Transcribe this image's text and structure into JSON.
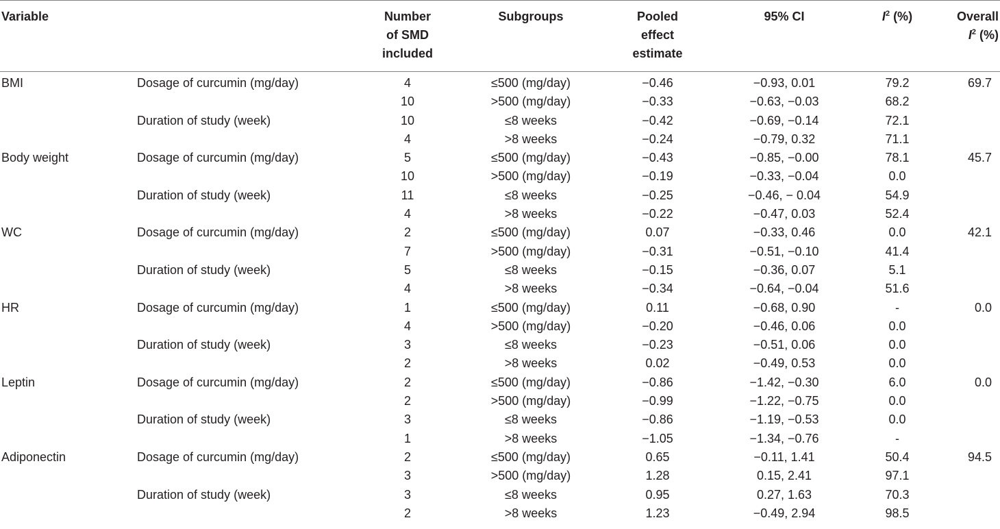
{
  "header": {
    "variable": "Variable",
    "number_line1": "Number",
    "number_line2": "of SMD",
    "number_line3": "included",
    "subgroups": "Subgroups",
    "pooled_line1": "Pooled",
    "pooled_line2": "effect",
    "pooled_line3": "estimate",
    "ci": "95% CI",
    "i2_letter": "I",
    "i2_sup": "2",
    "i2_rest": " (%)",
    "overall_line1": "Overall",
    "overall_letter": "I",
    "overall_sup": "2",
    "overall_rest": " (%)"
  },
  "rows": [
    {
      "variable": "BMI",
      "category": "Dosage of curcumin (mg/day)",
      "number": "4",
      "subgroup": "≤500 (mg/day)",
      "pooled": "−0.46",
      "ci": "−0.93, 0.01",
      "i2": "79.2",
      "overall_i2": "69.7"
    },
    {
      "variable": "",
      "category": "",
      "number": "10",
      "subgroup": ">500 (mg/day)",
      "pooled": "−0.33",
      "ci": "−0.63, −0.03",
      "i2": "68.2",
      "overall_i2": ""
    },
    {
      "variable": "",
      "category": "Duration of study (week)",
      "number": "10",
      "subgroup": "≤8 weeks",
      "pooled": "−0.42",
      "ci": "−0.69, −0.14",
      "i2": "72.1",
      "overall_i2": ""
    },
    {
      "variable": "",
      "category": "",
      "number": "4",
      "subgroup": ">8 weeks",
      "pooled": "−0.24",
      "ci": "−0.79, 0.32",
      "i2": "71.1",
      "overall_i2": ""
    },
    {
      "variable": "Body weight",
      "category": "Dosage of curcumin (mg/day)",
      "number": "5",
      "subgroup": "≤500 (mg/day)",
      "pooled": "−0.43",
      "ci": "−0.85, −0.00",
      "i2": "78.1",
      "overall_i2": "45.7"
    },
    {
      "variable": "",
      "category": "",
      "number": "10",
      "subgroup": ">500 (mg/day)",
      "pooled": "−0.19",
      "ci": "−0.33, −0.04",
      "i2": "0.0",
      "overall_i2": ""
    },
    {
      "variable": "",
      "category": "Duration of study (week)",
      "number": "11",
      "subgroup": "≤8 weeks",
      "pooled": "−0.25",
      "ci": "−0.46, − 0.04",
      "i2": "54.9",
      "overall_i2": ""
    },
    {
      "variable": "",
      "category": "",
      "number": "4",
      "subgroup": ">8 weeks",
      "pooled": "−0.22",
      "ci": "−0.47, 0.03",
      "i2": "52.4",
      "overall_i2": ""
    },
    {
      "variable": "WC",
      "category": "Dosage of curcumin (mg/day)",
      "number": "2",
      "subgroup": "≤500 (mg/day)",
      "pooled": "0.07",
      "ci": "−0.33, 0.46",
      "i2": "0.0",
      "overall_i2": "42.1"
    },
    {
      "variable": "",
      "category": "",
      "number": "7",
      "subgroup": ">500 (mg/day)",
      "pooled": "−0.31",
      "ci": "−0.51, −0.10",
      "i2": "41.4",
      "overall_i2": ""
    },
    {
      "variable": "",
      "category": "Duration of study (week)",
      "number": "5",
      "subgroup": "≤8 weeks",
      "pooled": "−0.15",
      "ci": "−0.36, 0.07",
      "i2": "5.1",
      "overall_i2": ""
    },
    {
      "variable": "",
      "category": "",
      "number": "4",
      "subgroup": ">8 weeks",
      "pooled": "−0.34",
      "ci": "−0.64, −0.04",
      "i2": "51.6",
      "overall_i2": ""
    },
    {
      "variable": "HR",
      "category": "Dosage of curcumin (mg/day)",
      "number": "1",
      "subgroup": "≤500 (mg/day)",
      "pooled": "0.11",
      "ci": "−0.68, 0.90",
      "i2": "-",
      "overall_i2": "0.0"
    },
    {
      "variable": "",
      "category": "",
      "number": "4",
      "subgroup": ">500 (mg/day)",
      "pooled": "−0.20",
      "ci": "−0.46, 0.06",
      "i2": "0.0",
      "overall_i2": ""
    },
    {
      "variable": "",
      "category": "Duration of study (week)",
      "number": "3",
      "subgroup": "≤8 weeks",
      "pooled": "−0.23",
      "ci": "−0.51, 0.06",
      "i2": "0.0",
      "overall_i2": ""
    },
    {
      "variable": "",
      "category": "",
      "number": "2",
      "subgroup": ">8 weeks",
      "pooled": "0.02",
      "ci": "−0.49, 0.53",
      "i2": "0.0",
      "overall_i2": ""
    },
    {
      "variable": "Leptin",
      "category": "Dosage of curcumin (mg/day)",
      "number": "2",
      "subgroup": "≤500 (mg/day)",
      "pooled": "−0.86",
      "ci": "−1.42, −0.30",
      "i2": "6.0",
      "overall_i2": "0.0"
    },
    {
      "variable": "",
      "category": "",
      "number": "2",
      "subgroup": ">500 (mg/day)",
      "pooled": "−0.99",
      "ci": "−1.22, −0.75",
      "i2": "0.0",
      "overall_i2": ""
    },
    {
      "variable": "",
      "category": "Duration of study (week)",
      "number": "3",
      "subgroup": "≤8 weeks",
      "pooled": "−0.86",
      "ci": "−1.19, −0.53",
      "i2": "0.0",
      "overall_i2": ""
    },
    {
      "variable": "",
      "category": "",
      "number": "1",
      "subgroup": ">8 weeks",
      "pooled": "−1.05",
      "ci": "−1.34, −0.76",
      "i2": "-",
      "overall_i2": ""
    },
    {
      "variable": "Adiponectin",
      "category": "Dosage of curcumin (mg/day)",
      "number": "2",
      "subgroup": "≤500 (mg/day)",
      "pooled": "0.65",
      "ci": "−0.11, 1.41",
      "i2": "50.4",
      "overall_i2": "94.5"
    },
    {
      "variable": "",
      "category": "",
      "number": "3",
      "subgroup": ">500 (mg/day)",
      "pooled": "1.28",
      "ci": "0.15, 2.41",
      "i2": "97.1",
      "overall_i2": ""
    },
    {
      "variable": "",
      "category": "Duration of study (week)",
      "number": "3",
      "subgroup": "≤8 weeks",
      "pooled": "0.95",
      "ci": "0.27, 1.63",
      "i2": "70.3",
      "overall_i2": ""
    },
    {
      "variable": "",
      "category": "",
      "number": "2",
      "subgroup": ">8 weeks",
      "pooled": "1.23",
      "ci": "−0.49, 2.94",
      "i2": "98.5",
      "overall_i2": ""
    }
  ]
}
